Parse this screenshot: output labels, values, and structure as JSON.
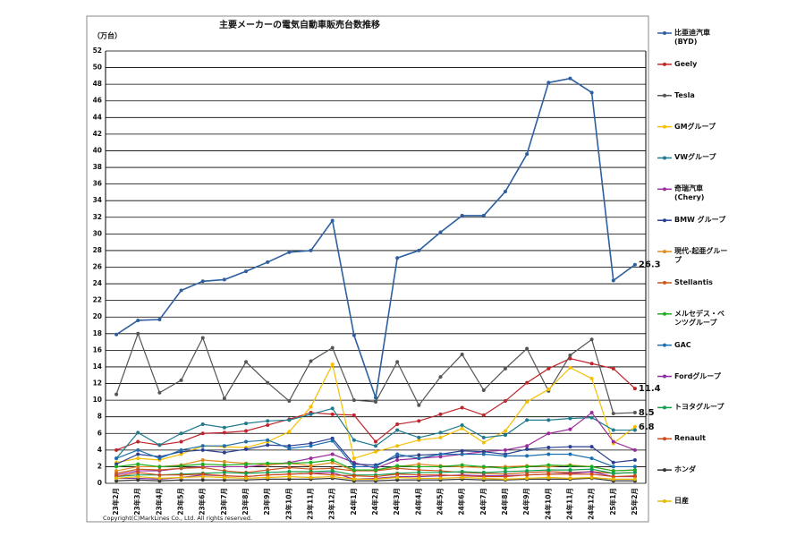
{
  "chart_data": {
    "type": "line",
    "title": "主要メーカーの電気自動車販売台数推移",
    "ylabel": "（万台）",
    "footnote": "Copyright(C)MarkLines Co., Ltd. All rights reserved.",
    "categories": [
      "23年2月",
      "23年3月",
      "23年4月",
      "23年5月",
      "23年6月",
      "23年7月",
      "23年8月",
      "23年9月",
      "23年10月",
      "23年11月",
      "23年12月",
      "24年1月",
      "24年2月",
      "24年3月",
      "24年4月",
      "24年5月",
      "24年6月",
      "24年7月",
      "24年8月",
      "24年9月",
      "24年10月",
      "24年11月",
      "24年12月",
      "25年1月",
      "25年2月"
    ],
    "ylim": [
      0,
      52
    ],
    "yticks": [
      0,
      2,
      4,
      6,
      8,
      10,
      12,
      14,
      16,
      18,
      20,
      22,
      24,
      26,
      28,
      30,
      32,
      34,
      36,
      38,
      40,
      42,
      44,
      46,
      48,
      50,
      52
    ],
    "grid": true,
    "legend": "right",
    "series": [
      {
        "name": "比亜迪汽車(BYD)",
        "color": "#2e5f9e",
        "label_last": true,
        "values": [
          17.9,
          19.6,
          19.7,
          23.2,
          24.3,
          24.5,
          25.5,
          26.6,
          27.8,
          28.0,
          31.6,
          17.8,
          10.3,
          27.1,
          28.0,
          30.2,
          32.2,
          32.2,
          35.1,
          39.6,
          48.2,
          48.7,
          47.0,
          24.4,
          26.3
        ]
      },
      {
        "name": "Geely",
        "color": "#c0262c",
        "label_last": true,
        "values": [
          4.0,
          5.0,
          4.6,
          5.0,
          6.0,
          6.1,
          6.3,
          7.0,
          7.7,
          8.5,
          8.3,
          8.2,
          5.0,
          7.1,
          7.5,
          8.3,
          9.1,
          8.2,
          9.9,
          12.1,
          13.8,
          15.0,
          14.4,
          13.8,
          11.4
        ]
      },
      {
        "name": "Tesla",
        "color": "#555555",
        "label_last": true,
        "values": [
          10.7,
          18.0,
          10.9,
          12.4,
          17.5,
          10.2,
          14.6,
          12.1,
          9.9,
          14.7,
          16.3,
          10.0,
          9.8,
          14.6,
          9.4,
          12.8,
          15.5,
          11.2,
          13.8,
          16.2,
          11.1,
          15.4,
          17.3,
          8.4,
          8.5
        ]
      },
      {
        "name": "GMグループ",
        "color": "#f5c000",
        "label_last": true,
        "values": [
          2.5,
          3.0,
          2.8,
          3.5,
          4.5,
          4.4,
          4.3,
          5.0,
          6.2,
          9.2,
          14.3,
          3.0,
          3.8,
          4.5,
          5.2,
          5.5,
          6.6,
          4.9,
          6.3,
          9.8,
          11.3,
          13.9,
          12.6,
          4.8,
          6.8
        ]
      },
      {
        "name": "VWグループ",
        "color": "#1f7a8c",
        "values": [
          3.0,
          6.1,
          4.6,
          6.0,
          7.1,
          6.7,
          7.2,
          7.5,
          7.6,
          8.3,
          9.0,
          5.2,
          4.5,
          6.4,
          5.5,
          6.1,
          7.0,
          5.5,
          5.8,
          7.6,
          7.6,
          7.8,
          7.9,
          6.4,
          6.4
        ]
      },
      {
        "name": "奇瑞汽車(Chery)",
        "color": "#9b2d9b",
        "values": [
          1.0,
          1.5,
          1.5,
          1.8,
          2.0,
          2.0,
          2.0,
          2.2,
          2.5,
          3.0,
          3.5,
          2.5,
          1.8,
          2.8,
          3.0,
          3.2,
          3.5,
          3.8,
          4.0,
          4.5,
          6.0,
          6.5,
          8.5,
          5.0,
          4.0
        ]
      },
      {
        "name": "BMW グループ",
        "color": "#2a3f8f",
        "values": [
          2.3,
          3.5,
          3.2,
          3.8,
          4.0,
          3.7,
          4.1,
          4.6,
          4.5,
          4.8,
          5.4,
          2.3,
          2.2,
          3.2,
          3.4,
          3.5,
          3.9,
          3.8,
          3.5,
          4.1,
          4.3,
          4.4,
          4.4,
          2.5,
          2.8
        ]
      },
      {
        "name": "現代-起亜グループ",
        "color": "#e08a1e",
        "values": [
          1.5,
          2.0,
          2.0,
          2.2,
          2.8,
          2.6,
          2.4,
          2.2,
          2.4,
          2.1,
          2.5,
          1.5,
          1.6,
          2.0,
          2.3,
          2.1,
          2.0,
          1.9,
          2.0,
          2.1,
          2.0,
          2.2,
          2.0,
          1.5,
          1.6
        ]
      },
      {
        "name": "Stellantis",
        "color": "#c85a1e",
        "values": [
          1.2,
          1.7,
          1.6,
          1.8,
          1.9,
          1.5,
          1.3,
          1.6,
          1.9,
          1.7,
          1.8,
          1.5,
          1.5,
          1.8,
          1.6,
          1.5,
          1.3,
          1.2,
          1.1,
          1.3,
          1.4,
          1.3,
          1.4,
          1.2,
          1.3
        ]
      },
      {
        "name": "メルセデス・ベンツグループ",
        "color": "#1fae1f",
        "values": [
          2.0,
          2.3,
          2.0,
          2.1,
          2.3,
          2.2,
          2.3,
          2.4,
          2.4,
          2.5,
          2.8,
          1.6,
          1.6,
          2.1,
          2.0,
          2.0,
          2.2,
          2.0,
          1.8,
          2.0,
          2.2,
          2.1,
          2.0,
          1.5,
          1.6
        ]
      },
      {
        "name": "GAC",
        "color": "#1f6fae",
        "values": [
          3.0,
          4.0,
          3.0,
          4.0,
          4.5,
          4.5,
          5.0,
          5.2,
          4.2,
          4.5,
          5.1,
          2.0,
          2.0,
          3.5,
          3.0,
          3.5,
          3.5,
          3.5,
          3.3,
          3.3,
          3.5,
          3.5,
          3.0,
          2.0,
          2.0
        ]
      },
      {
        "name": "Fordグループ",
        "color": "#8b2fa0",
        "values": [
          0.6,
          0.6,
          0.5,
          0.7,
          1.0,
          0.9,
          0.8,
          1.0,
          1.1,
          1.2,
          1.3,
          0.5,
          0.6,
          0.8,
          0.8,
          0.9,
          1.0,
          0.9,
          0.9,
          1.0,
          1.1,
          1.2,
          1.4,
          0.8,
          0.8
        ]
      },
      {
        "name": "トヨタグループ",
        "color": "#10a050",
        "values": [
          0.8,
          1.0,
          1.0,
          1.1,
          1.2,
          1.3,
          1.2,
          1.3,
          1.4,
          1.4,
          1.5,
          1.0,
          1.0,
          1.2,
          1.3,
          1.3,
          1.4,
          1.3,
          1.4,
          1.5,
          1.6,
          1.6,
          1.7,
          1.2,
          1.3
        ]
      },
      {
        "name": "Renault",
        "color": "#d04a1a",
        "values": [
          0.8,
          1.3,
          1.0,
          1.0,
          1.1,
          0.9,
          0.8,
          1.0,
          1.1,
          1.2,
          1.0,
          0.9,
          0.8,
          1.1,
          1.0,
          1.0,
          0.9,
          0.8,
          0.8,
          1.0,
          1.1,
          1.1,
          1.1,
          0.8,
          0.9
        ]
      },
      {
        "name": "ホンダ",
        "color": "#333333",
        "values": [
          0.3,
          0.4,
          0.3,
          0.4,
          0.4,
          0.4,
          0.4,
          0.5,
          0.5,
          0.5,
          0.6,
          0.3,
          0.3,
          0.4,
          0.4,
          0.4,
          0.5,
          0.4,
          0.4,
          0.5,
          0.5,
          0.5,
          0.6,
          0.3,
          0.3
        ]
      },
      {
        "name": "日産",
        "color": "#e8b800",
        "values": [
          0.6,
          0.8,
          0.6,
          0.7,
          0.8,
          0.7,
          0.6,
          0.7,
          0.8,
          0.7,
          0.8,
          0.5,
          0.5,
          0.7,
          0.6,
          0.6,
          0.7,
          0.6,
          0.5,
          0.6,
          0.7,
          0.6,
          0.7,
          0.5,
          0.5
        ]
      }
    ]
  }
}
